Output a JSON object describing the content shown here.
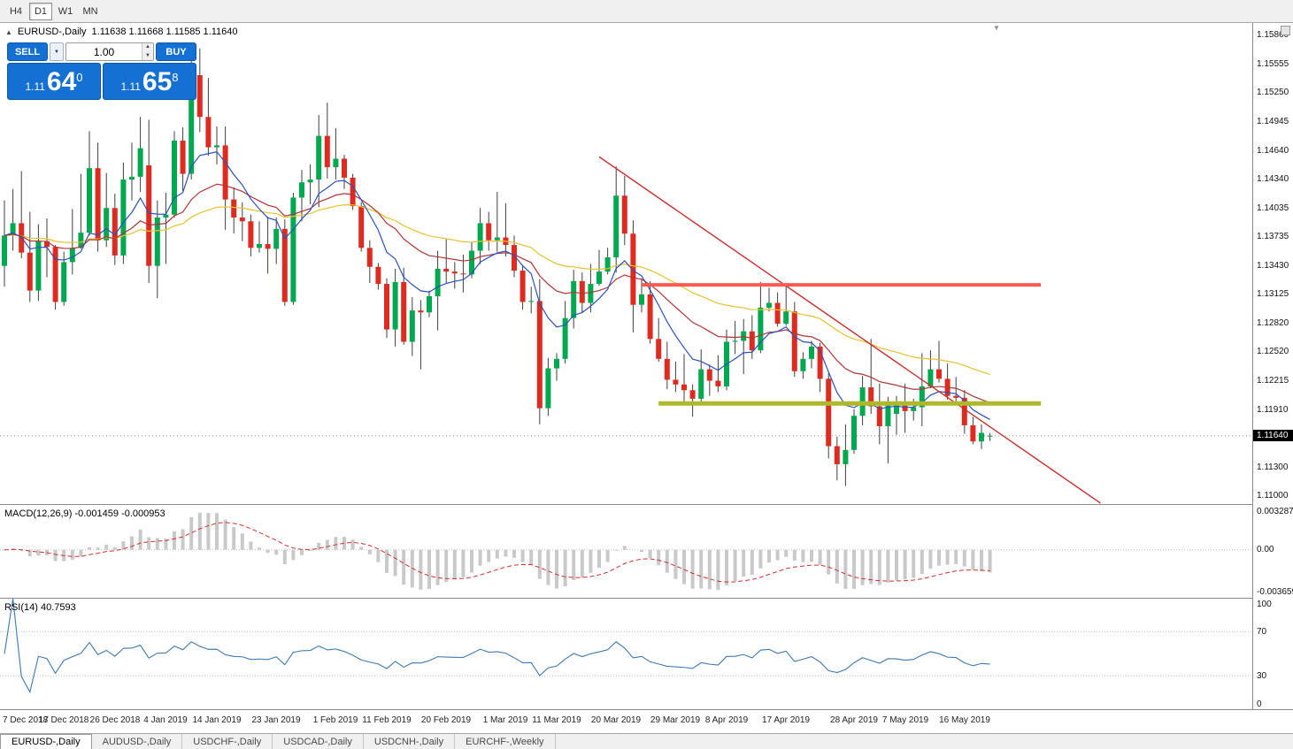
{
  "toolbar": {
    "timeframes": [
      {
        "label": "H4",
        "active": false
      },
      {
        "label": "D1",
        "active": true
      },
      {
        "label": "W1",
        "active": false
      },
      {
        "label": "MN",
        "active": false
      }
    ]
  },
  "chart_header": {
    "title": "EURUSD-,Daily",
    "ohlc": "1.11638 1.11668 1.11585 1.11640"
  },
  "icons": {
    "collapse": "▲",
    "dropdown": "▼",
    "spin_up": "▲",
    "spin_down": "▼",
    "shift_marker": "▼"
  },
  "trade_panel": {
    "sell_label": "SELL",
    "buy_label": "BUY",
    "volume": "1.00",
    "sell_prefix": "1.11",
    "sell_big": "64",
    "sell_sup": "0",
    "buy_prefix": "1.11",
    "buy_big": "65",
    "buy_sup": "8"
  },
  "price_axis": {
    "labels": [
      "1.15860",
      "1.15555",
      "1.15250",
      "1.14945",
      "1.14640",
      "1.14340",
      "1.14035",
      "1.13735",
      "1.13430",
      "1.13125",
      "1.12820",
      "1.12520",
      "1.12215",
      "1.11910",
      "1.11300",
      "1.11000"
    ],
    "current_price": "1.11640"
  },
  "indicators": {
    "macd": {
      "label": "MACD(12,26,9) -0.001459 -0.000953",
      "axis_top": "0.003287",
      "axis_zero": "0.00",
      "axis_bottom": "-0.003659"
    },
    "rsi": {
      "label": "RSI(14) 40.7593",
      "axis": [
        "100",
        "70",
        "30",
        "0"
      ]
    }
  },
  "date_axis": {
    "labels": [
      {
        "text": "7 Dec 2018",
        "index": 1
      },
      {
        "text": "17 Dec 2018",
        "index": 7
      },
      {
        "text": "26 Dec 2018",
        "index": 13
      },
      {
        "text": "4 Jan 2019",
        "index": 19
      },
      {
        "text": "14 Jan 2019",
        "index": 25
      },
      {
        "text": "23 Jan 2019",
        "index": 32
      },
      {
        "text": "1 Feb 2019",
        "index": 39
      },
      {
        "text": "11 Feb 2019",
        "index": 45
      },
      {
        "text": "20 Feb 2019",
        "index": 52
      },
      {
        "text": "1 Mar 2019",
        "index": 59
      },
      {
        "text": "11 Mar 2019",
        "index": 65
      },
      {
        "text": "20 Mar 2019",
        "index": 72
      },
      {
        "text": "29 Mar 2019",
        "index": 79
      },
      {
        "text": "8 Apr 2019",
        "index": 85
      },
      {
        "text": "17 Apr 2019",
        "index": 92
      },
      {
        "text": "28 Apr 2019",
        "index": 100
      },
      {
        "text": "7 May 2019",
        "index": 106
      },
      {
        "text": "16 May 2019",
        "index": 113
      }
    ]
  },
  "tabs": [
    {
      "label": "EURUSD-,Daily",
      "active": true
    },
    {
      "label": "AUDUSD-,Daily",
      "active": false
    },
    {
      "label": "USDCHF-,Daily",
      "active": false
    },
    {
      "label": "USDCAD-,Daily",
      "active": false
    },
    {
      "label": "USDCNH-,Daily",
      "active": false
    },
    {
      "label": "EURCHF-,Weekly",
      "active": false
    }
  ],
  "chart_data": {
    "type": "candlestick",
    "symbol": "EURUSD",
    "timeframe": "Daily",
    "title": "EURUSD-,Daily",
    "ylim": [
      1.1092,
      1.1599
    ],
    "current_price": 1.1164,
    "candles": [
      [
        1.1343,
        1.1412,
        1.1321,
        1.1375
      ],
      [
        1.1375,
        1.1424,
        1.1359,
        1.1388
      ],
      [
        1.1388,
        1.1443,
        1.1351,
        1.1357
      ],
      [
        1.1357,
        1.14,
        1.1305,
        1.1317
      ],
      [
        1.1317,
        1.1387,
        1.1306,
        1.1369
      ],
      [
        1.1369,
        1.1393,
        1.1331,
        1.1363
      ],
      [
        1.1363,
        1.1365,
        1.1297,
        1.1305
      ],
      [
        1.1305,
        1.1358,
        1.1301,
        1.1347
      ],
      [
        1.1347,
        1.1403,
        1.1334,
        1.1362
      ],
      [
        1.1362,
        1.144,
        1.1361,
        1.1378
      ],
      [
        1.1378,
        1.1485,
        1.1375,
        1.1446
      ],
      [
        1.1446,
        1.1473,
        1.1358,
        1.137
      ],
      [
        1.137,
        1.1441,
        1.1363,
        1.1404
      ],
      [
        1.1404,
        1.1419,
        1.1344,
        1.1354
      ],
      [
        1.1354,
        1.1452,
        1.1345,
        1.1434
      ],
      [
        1.1434,
        1.1473,
        1.1412,
        1.1437
      ],
      [
        1.1437,
        1.15,
        1.1421,
        1.1467
      ],
      [
        1.1449,
        1.1497,
        1.1325,
        1.1343
      ],
      [
        1.1343,
        1.1412,
        1.1309,
        1.1394
      ],
      [
        1.1394,
        1.142,
        1.1345,
        1.1397
      ],
      [
        1.1397,
        1.1485,
        1.1394,
        1.1475
      ],
      [
        1.1475,
        1.1489,
        1.1422,
        1.144
      ],
      [
        1.144,
        1.1571,
        1.1434,
        1.1544
      ],
      [
        1.1544,
        1.1572,
        1.1484,
        1.15
      ],
      [
        1.15,
        1.1541,
        1.1459,
        1.1468
      ],
      [
        1.1468,
        1.149,
        1.145,
        1.147
      ],
      [
        1.147,
        1.149,
        1.1381,
        1.1413
      ],
      [
        1.1413,
        1.1426,
        1.1377,
        1.1394
      ],
      [
        1.1394,
        1.141,
        1.1369,
        1.139
      ],
      [
        1.139,
        1.1397,
        1.1353,
        1.1362
      ],
      [
        1.1362,
        1.139,
        1.1357,
        1.1366
      ],
      [
        1.1366,
        1.1395,
        1.1335,
        1.1361
      ],
      [
        1.1361,
        1.1394,
        1.1345,
        1.1382
      ],
      [
        1.1382,
        1.1392,
        1.1301,
        1.1305
      ],
      [
        1.1305,
        1.142,
        1.1302,
        1.1415
      ],
      [
        1.1415,
        1.1444,
        1.139,
        1.1431
      ],
      [
        1.1431,
        1.145,
        1.1408,
        1.1434
      ],
      [
        1.1434,
        1.1502,
        1.1405,
        1.148
      ],
      [
        1.148,
        1.1515,
        1.1435,
        1.1447
      ],
      [
        1.1447,
        1.1488,
        1.1434,
        1.1456
      ],
      [
        1.1456,
        1.146,
        1.1424,
        1.1436
      ],
      [
        1.1436,
        1.144,
        1.1402,
        1.1406
      ],
      [
        1.1406,
        1.141,
        1.1358,
        1.1362
      ],
      [
        1.1362,
        1.137,
        1.1325,
        1.1342
      ],
      [
        1.1342,
        1.1346,
        1.1318,
        1.1324
      ],
      [
        1.1324,
        1.133,
        1.1267,
        1.1276
      ],
      [
        1.1276,
        1.134,
        1.1258,
        1.1326
      ],
      [
        1.1326,
        1.1341,
        1.126,
        1.1263
      ],
      [
        1.1263,
        1.131,
        1.1248,
        1.1296
      ],
      [
        1.1296,
        1.1307,
        1.1234,
        1.1294
      ],
      [
        1.1294,
        1.1317,
        1.1289,
        1.1311
      ],
      [
        1.1311,
        1.1359,
        1.1275,
        1.134
      ],
      [
        1.134,
        1.1371,
        1.1324,
        1.1337
      ],
      [
        1.1337,
        1.1347,
        1.1319,
        1.1335
      ],
      [
        1.1335,
        1.1355,
        1.1315,
        1.1334
      ],
      [
        1.1334,
        1.1368,
        1.133,
        1.1359
      ],
      [
        1.1359,
        1.1404,
        1.1345,
        1.1388
      ],
      [
        1.1388,
        1.14,
        1.1359,
        1.137
      ],
      [
        1.137,
        1.1421,
        1.1358,
        1.1373
      ],
      [
        1.1373,
        1.1409,
        1.1353,
        1.1365
      ],
      [
        1.1365,
        1.1375,
        1.1331,
        1.1338
      ],
      [
        1.1338,
        1.1344,
        1.1297,
        1.1305
      ],
      [
        1.1305,
        1.1321,
        1.1293,
        1.1306
      ],
      [
        1.1306,
        1.1329,
        1.1176,
        1.1193
      ],
      [
        1.1193,
        1.1246,
        1.1185,
        1.1235
      ],
      [
        1.1235,
        1.1251,
        1.1222,
        1.1245
      ],
      [
        1.1245,
        1.1306,
        1.124,
        1.1288
      ],
      [
        1.1288,
        1.1339,
        1.1277,
        1.1327
      ],
      [
        1.1327,
        1.1336,
        1.1294,
        1.1304
      ],
      [
        1.1304,
        1.1345,
        1.1294,
        1.1324
      ],
      [
        1.1324,
        1.136,
        1.1322,
        1.1337
      ],
      [
        1.1337,
        1.1362,
        1.1334,
        1.1352
      ],
      [
        1.1352,
        1.1448,
        1.1336,
        1.1417
      ],
      [
        1.1417,
        1.1438,
        1.1365,
        1.1377
      ],
      [
        1.1377,
        1.1391,
        1.1273,
        1.1302
      ],
      [
        1.1302,
        1.133,
        1.1294,
        1.1313
      ],
      [
        1.1313,
        1.1327,
        1.1261,
        1.1266
      ],
      [
        1.1266,
        1.1288,
        1.1242,
        1.1245
      ],
      [
        1.1245,
        1.1263,
        1.1213,
        1.1223
      ],
      [
        1.1223,
        1.1242,
        1.121,
        1.1218
      ],
      [
        1.1218,
        1.125,
        1.1199,
        1.1212
      ],
      [
        1.1212,
        1.1218,
        1.1184,
        1.1203
      ],
      [
        1.1203,
        1.1255,
        1.12,
        1.1234
      ],
      [
        1.1234,
        1.1239,
        1.1206,
        1.1222
      ],
      [
        1.1222,
        1.1249,
        1.121,
        1.1216
      ],
      [
        1.1216,
        1.1276,
        1.1212,
        1.1263
      ],
      [
        1.1263,
        1.1285,
        1.125,
        1.1264
      ],
      [
        1.1264,
        1.1287,
        1.1229,
        1.1274
      ],
      [
        1.1274,
        1.1291,
        1.1245,
        1.1254
      ],
      [
        1.1254,
        1.1326,
        1.1251,
        1.1299
      ],
      [
        1.1299,
        1.132,
        1.1295,
        1.1304
      ],
      [
        1.1304,
        1.1315,
        1.1279,
        1.1282
      ],
      [
        1.1282,
        1.1324,
        1.128,
        1.1295
      ],
      [
        1.1295,
        1.1305,
        1.1226,
        1.1232
      ],
      [
        1.1232,
        1.1252,
        1.1224,
        1.1245
      ],
      [
        1.1245,
        1.1264,
        1.1235,
        1.1258
      ],
      [
        1.1258,
        1.1262,
        1.121,
        1.1224
      ],
      [
        1.1224,
        1.123,
        1.114,
        1.1153
      ],
      [
        1.1153,
        1.1163,
        1.1117,
        1.1134
      ],
      [
        1.1134,
        1.1176,
        1.1111,
        1.1149
      ],
      [
        1.1149,
        1.1192,
        1.1145,
        1.1185
      ],
      [
        1.1185,
        1.1227,
        1.1175,
        1.1215
      ],
      [
        1.1215,
        1.1266,
        1.1187,
        1.1195
      ],
      [
        1.1195,
        1.1219,
        1.1155,
        1.1174
      ],
      [
        1.1174,
        1.1205,
        1.1135,
        1.12
      ],
      [
        1.1187,
        1.1206,
        1.1165,
        1.1199
      ],
      [
        1.1199,
        1.1219,
        1.1167,
        1.119
      ],
      [
        1.119,
        1.1203,
        1.118,
        1.1194
      ],
      [
        1.1194,
        1.1251,
        1.1174,
        1.1216
      ],
      [
        1.1216,
        1.1254,
        1.1214,
        1.1234
      ],
      [
        1.1234,
        1.1264,
        1.122,
        1.1224
      ],
      [
        1.1224,
        1.124,
        1.1202,
        1.1206
      ],
      [
        1.1206,
        1.1226,
        1.1198,
        1.1204
      ],
      [
        1.1204,
        1.1212,
        1.1166,
        1.1175
      ],
      [
        1.1175,
        1.1184,
        1.1155,
        1.1158
      ],
      [
        1.1158,
        1.1176,
        1.115,
        1.1167
      ],
      [
        1.11638,
        1.11668,
        1.11585,
        1.1164
      ]
    ],
    "moving_averages": [
      {
        "period": 8,
        "color": "#2A52BE"
      },
      {
        "period": 21,
        "color": "#B03434"
      },
      {
        "period": 45,
        "color": "#E8C22E"
      }
    ],
    "objects": {
      "trendline": {
        "from_index": 70,
        "from_price": 1.1458,
        "to_index": 129,
        "to_price": 1.1093,
        "color": "#CC2A2A",
        "width": 1.4
      },
      "resistance": {
        "price": 1.1323,
        "from_index": 75,
        "to_index": 122,
        "color": "#FF5A52",
        "width": 4
      },
      "support": {
        "price": 1.1198,
        "from_index": 77,
        "to_index": 122,
        "color": "#ADB92A",
        "width": 5
      }
    },
    "macd": {
      "fast": 12,
      "slow": 26,
      "signal": 9
    },
    "rsi": {
      "period": 14,
      "levels": [
        70,
        30
      ]
    },
    "colors": {
      "up": "#00A94F",
      "down": "#DF2B1F",
      "wick": "#3F3F3F",
      "macd_histogram": "#C9C9C9",
      "macd_signal": "#D23030",
      "rsi_line": "#3C78B4",
      "price_line": "#9A9A9A"
    }
  }
}
